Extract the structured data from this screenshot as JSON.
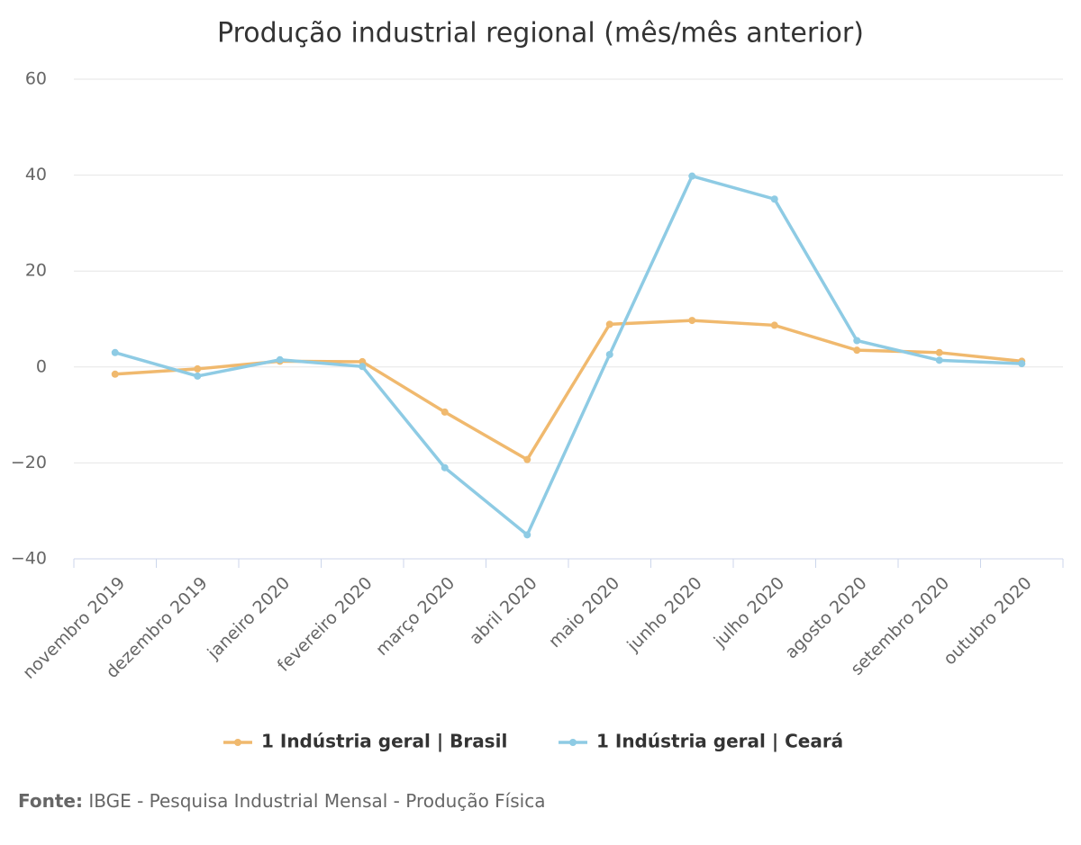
{
  "chart_data": {
    "type": "line",
    "title": "Produção industrial regional (mês/mês anterior)",
    "categories": [
      "novembro 2019",
      "dezembro 2019",
      "janeiro 2020",
      "fevereiro 2020",
      "março 2020",
      "abril 2020",
      "maio 2020",
      "junho 2020",
      "julho 2020",
      "agosto 2020",
      "setembro 2020",
      "outubro 2020"
    ],
    "series": [
      {
        "name": "1 Indústria geral | Brasil",
        "color": "#f0b96e",
        "values": [
          -1.5,
          -0.4,
          1.2,
          1.1,
          -9.4,
          -19.3,
          8.9,
          9.7,
          8.7,
          3.5,
          3.0,
          1.2
        ]
      },
      {
        "name": "1 Indústria geral | Ceará",
        "color": "#8ecbe4",
        "values": [
          3.0,
          -1.9,
          1.5,
          0.1,
          -21.0,
          -35.0,
          2.6,
          39.8,
          35.0,
          5.5,
          1.4,
          0.7
        ]
      }
    ],
    "ylim": [
      -40,
      60
    ],
    "yticks": [
      {
        "value": -40,
        "label": "−40"
      },
      {
        "value": -20,
        "label": "−20"
      },
      0,
      20,
      40,
      60
    ],
    "grid": true,
    "legend": "bottom",
    "source_label": "Fonte:",
    "source": "IBGE - Pesquisa Industrial Mensal - Produção Física"
  }
}
